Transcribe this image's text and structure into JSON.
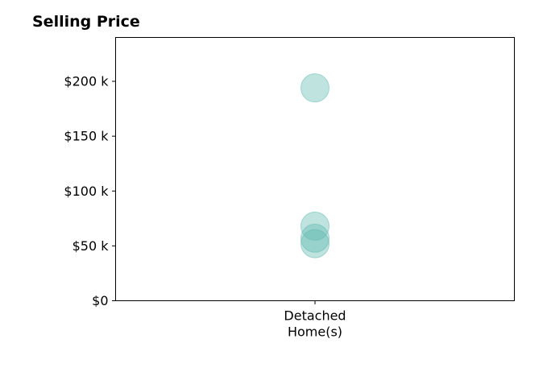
{
  "chart_data": {
    "type": "scatter",
    "title": "Selling Price",
    "xlabel": "",
    "ylabel": "",
    "categories": [
      [
        "Detached",
        "Home(s)"
      ]
    ],
    "ylim": [
      0,
      240000
    ],
    "yticks": [
      0,
      50000,
      100000,
      150000,
      200000
    ],
    "ytick_labels": [
      "$0",
      "$50 k",
      "$100 k",
      "$150 k",
      "$200 k"
    ],
    "grid": false,
    "legend": "none",
    "series": [
      {
        "category_index": 0,
        "values": [
          194000,
          68000,
          57000,
          52000
        ],
        "color": "#5fb8b0",
        "opacity": 0.4
      }
    ]
  }
}
